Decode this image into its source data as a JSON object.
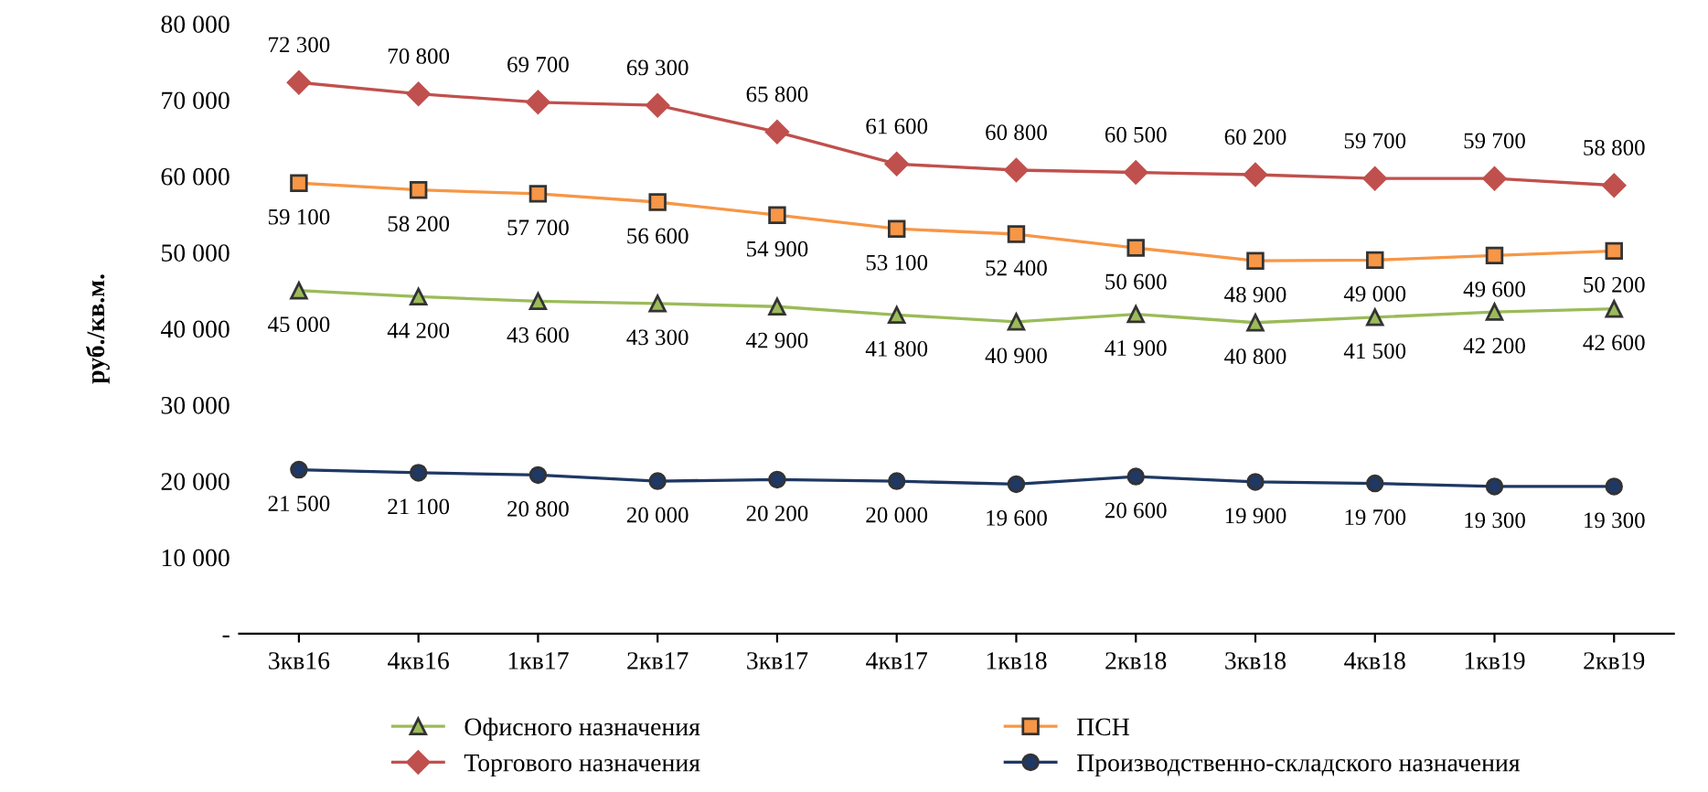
{
  "chart_data": {
    "type": "line",
    "ylabel": "руб./кв.м.",
    "categories": [
      "3кв16",
      "4кв16",
      "1кв17",
      "2кв17",
      "3кв17",
      "4кв17",
      "1кв18",
      "2кв18",
      "3кв18",
      "4кв18",
      "1кв19",
      "2кв19"
    ],
    "ylim": [
      0,
      80000
    ],
    "yticks": [
      {
        "value": 0,
        "label": "-"
      },
      {
        "value": 10000,
        "label": "10 000"
      },
      {
        "value": 20000,
        "label": "20 000"
      },
      {
        "value": 30000,
        "label": "30 000"
      },
      {
        "value": 40000,
        "label": "40 000"
      },
      {
        "value": 50000,
        "label": "50 000"
      },
      {
        "value": 60000,
        "label": "60 000"
      },
      {
        "value": 70000,
        "label": "70 000"
      },
      {
        "value": 80000,
        "label": "80 000"
      }
    ],
    "grid": false,
    "legend": "bottom",
    "series": [
      {
        "name": "Офисного назначения",
        "color": "#9bbb59",
        "marker": "triangle",
        "values": [
          45000,
          44200,
          43600,
          43300,
          42900,
          41800,
          40900,
          41900,
          40800,
          41500,
          42200,
          42600
        ],
        "value_labels": [
          "45 000",
          "44 200",
          "43 600",
          "43 300",
          "42 900",
          "41 800",
          "40 900",
          "41 900",
          "40 800",
          "41 500",
          "42 200",
          "42 600"
        ]
      },
      {
        "name": "Торгового назначения",
        "color": "#c0504d",
        "marker": "diamond",
        "values": [
          72300,
          70800,
          69700,
          69300,
          65800,
          61600,
          60800,
          60500,
          60200,
          59700,
          59700,
          58800
        ],
        "value_labels": [
          "72 300",
          "70 800",
          "69 700",
          "69 300",
          "65 800",
          "61 600",
          "60 800",
          "60 500",
          "60 200",
          "59 700",
          "59 700",
          "58 800"
        ]
      },
      {
        "name": "ПСН",
        "color": "#f79646",
        "marker": "square",
        "values": [
          59100,
          58200,
          57700,
          56600,
          54900,
          53100,
          52400,
          50600,
          48900,
          49000,
          49600,
          50200
        ],
        "value_labels": [
          "59 100",
          "58 200",
          "57 700",
          "56 600",
          "54 900",
          "53 100",
          "52 400",
          "50 600",
          "48 900",
          "49 000",
          "49 600",
          "50 200"
        ]
      },
      {
        "name": "Производственно-складского назначения",
        "color": "#1f3864",
        "marker": "circle",
        "values": [
          21500,
          21100,
          20800,
          20000,
          20200,
          20000,
          19600,
          20600,
          19900,
          19700,
          19300,
          19300
        ],
        "value_labels": [
          "21 500",
          "21 100",
          "20 800",
          "20 000",
          "20 200",
          "20 000",
          "19 600",
          "20 600",
          "19 900",
          "19 700",
          "19 300",
          "19 300"
        ]
      }
    ]
  }
}
